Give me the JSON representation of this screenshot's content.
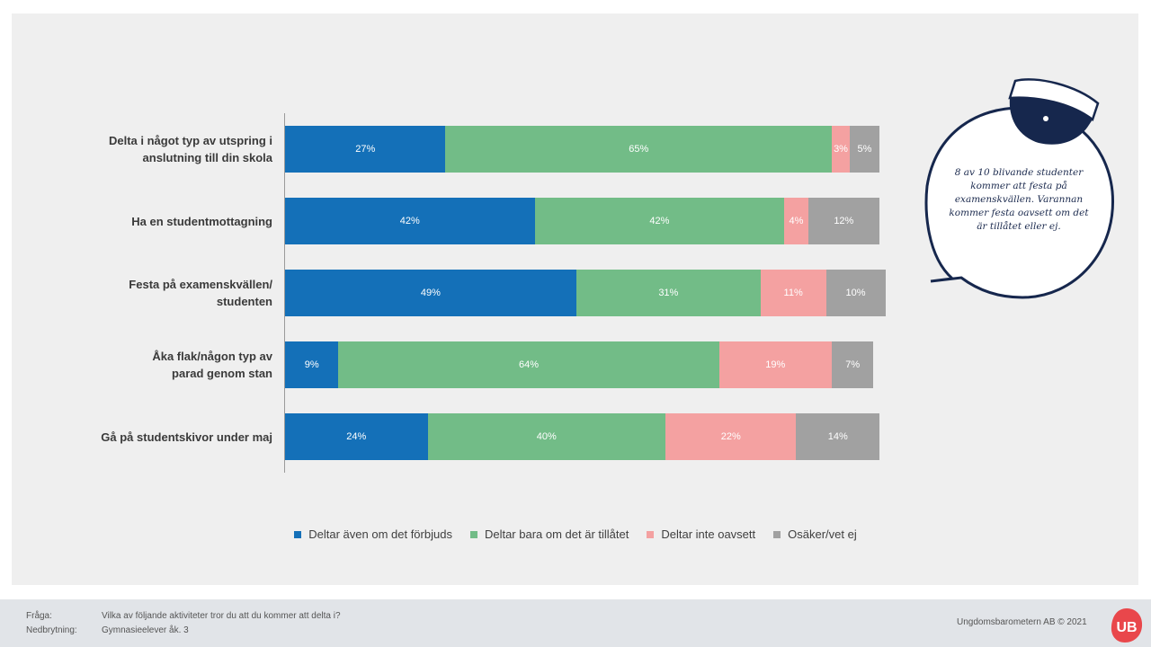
{
  "chart_data": {
    "type": "bar",
    "orientation": "horizontal",
    "stacked": true,
    "categories": [
      [
        "Delta i något typ av utspring i",
        "anslutning till din skola"
      ],
      [
        "Ha en studentmottagning"
      ],
      [
        "Festa på examenskvällen/",
        "studenten"
      ],
      [
        "Åka flak/någon typ av",
        "parad genom stan"
      ],
      [
        "Gå på studentskivor under maj"
      ]
    ],
    "series": [
      {
        "name": "Deltar även om det förbjuds",
        "color": "#1470b8",
        "values": [
          27,
          42,
          49,
          9,
          24
        ]
      },
      {
        "name": "Deltar bara om det är tillåtet",
        "color": "#72bc87",
        "values": [
          65,
          42,
          31,
          64,
          40
        ]
      },
      {
        "name": "Deltar inte oavsett",
        "color": "#f4a1a1",
        "values": [
          3,
          4,
          11,
          19,
          22
        ]
      },
      {
        "name": "Osäker/vet ej",
        "color": "#a1a1a1",
        "values": [
          5,
          12,
          10,
          7,
          14
        ]
      }
    ],
    "xlim": [
      0,
      100
    ],
    "legend_position": "bottom",
    "grid": false
  },
  "callout": {
    "text": "8 av 10 blivande studenter kommer att festa på examenskvällen. Varannan kommer festa oavsett om det är tillåtet eller ej.",
    "color": "#1b2a4e",
    "icon": "student-cap-icon"
  },
  "footer": {
    "question_label": "Fråga:",
    "question_text": "Vilka av följande aktiviteter tror du att du kommer att delta i?",
    "breakdown_label": "Nedbrytning:",
    "breakdown_text": "Gymnasieelever åk. 3",
    "copyright": "Ungdomsbarometern AB © 2021",
    "logo_text": "UB",
    "logo_color": "#e9474b"
  }
}
